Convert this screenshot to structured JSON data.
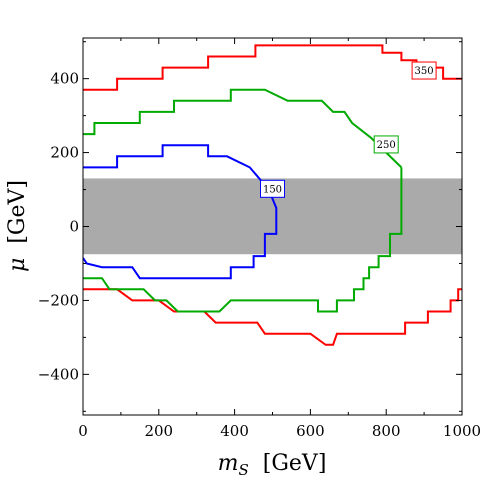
{
  "chart_data": {
    "type": "line",
    "xlabel": {
      "symbol": "m",
      "subscript": "S",
      "unit": "[GeV]"
    },
    "ylabel": {
      "symbol": "μ",
      "unit": "[GeV]"
    },
    "xlim": [
      0,
      1000
    ],
    "ylim": [
      -510,
      510
    ],
    "xticks": [
      0,
      200,
      400,
      600,
      800,
      1000
    ],
    "yticks": [
      -400,
      -200,
      0,
      200,
      400
    ],
    "ytick_labels": [
      "−400",
      "−200",
      "0",
      "200",
      "400"
    ],
    "grid": false,
    "shaded_band": {
      "y_min": -75,
      "y_max": 130,
      "color": "#aaaaaa"
    },
    "series": [
      {
        "id": "red-upper",
        "color": "#ff0000",
        "label": "350",
        "label_at": [
          900,
          422
        ],
        "x": [
          0,
          90,
          90,
          210,
          210,
          330,
          330,
          455,
          455,
          790,
          790,
          840,
          840,
          880,
          880,
          950,
          950,
          1000
        ],
        "y": [
          370,
          370,
          400,
          400,
          430,
          430,
          460,
          460,
          490,
          490,
          470,
          470,
          450,
          450,
          430,
          430,
          400,
          400
        ]
      },
      {
        "id": "red-lower",
        "color": "#ff0000",
        "x": [
          0,
          90,
          130,
          200,
          240,
          320,
          350,
          460,
          480,
          600,
          640,
          660,
          670,
          850,
          850,
          910,
          910,
          970,
          970,
          990,
          990,
          1000
        ],
        "y": [
          -170,
          -170,
          -200,
          -200,
          -230,
          -230,
          -260,
          -260,
          -290,
          -290,
          -320,
          -320,
          -290,
          -290,
          -260,
          -260,
          -230,
          -230,
          -200,
          -200,
          -170,
          -170
        ]
      },
      {
        "id": "green-upper",
        "color": "#00aa00",
        "label": "250",
        "label_at": [
          800,
          222
        ],
        "x": [
          0,
          30,
          30,
          150,
          150,
          240,
          240,
          390,
          390,
          480,
          540,
          630,
          660,
          690,
          710,
          760,
          800,
          840
        ],
        "y": [
          250,
          250,
          280,
          280,
          310,
          310,
          340,
          340,
          370,
          370,
          340,
          340,
          310,
          310,
          280,
          240,
          200,
          160
        ]
      },
      {
        "id": "green-lower",
        "color": "#00aa00",
        "x": [
          840,
          840,
          810,
          810,
          780,
          780,
          755,
          755,
          740,
          740,
          715,
          715,
          670,
          670,
          620,
          620,
          390,
          360,
          250,
          220,
          190,
          160,
          70,
          50,
          0
        ],
        "y": [
          160,
          -20,
          -20,
          -80,
          -80,
          -110,
          -110,
          -140,
          -140,
          -170,
          -170,
          -200,
          -200,
          -230,
          -230,
          -200,
          -200,
          -230,
          -230,
          -200,
          -200,
          -170,
          -170,
          -140,
          -140
        ]
      },
      {
        "id": "blue",
        "color": "#0000ff",
        "label": "150",
        "label_at": [
          500,
          102
        ],
        "x": [
          0,
          90,
          90,
          210,
          210,
          330,
          330,
          380,
          440,
          490,
          510,
          510,
          480,
          480,
          450,
          450,
          390,
          390,
          150,
          130,
          50,
          10,
          0
        ],
        "y": [
          160,
          160,
          190,
          190,
          220,
          220,
          190,
          190,
          160,
          100,
          50,
          -20,
          -20,
          -80,
          -80,
          -110,
          -110,
          -140,
          -140,
          -110,
          -110,
          -100,
          -85
        ]
      }
    ]
  }
}
